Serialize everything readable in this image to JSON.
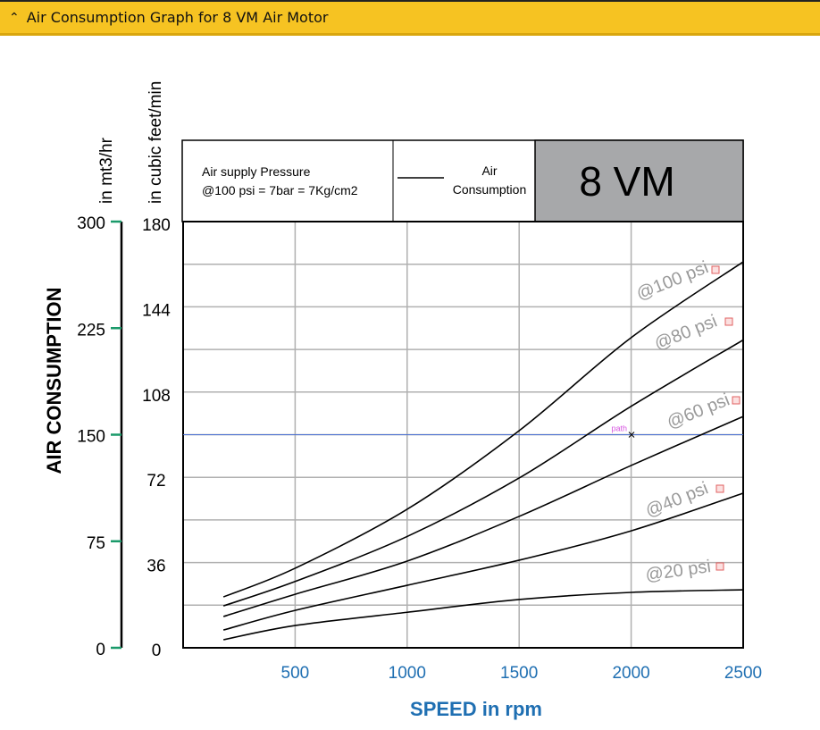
{
  "header": {
    "title": "Air Consumption Graph for 8 VM Air Motor",
    "icon": "chevron-up-icon"
  },
  "chart_data": {
    "type": "line",
    "model": "8 VM",
    "legend": {
      "pressure_line1": "Air supply Pressure",
      "pressure_line2": "@100 psi = 7bar = 7Kg/cm2",
      "line_label1": "Air",
      "line_label2": "Consumption"
    },
    "xlabel": "SPEED in rpm",
    "ylabel": "AIR CONSUMPTION",
    "y_unit_left": "in mt3/hr",
    "y_unit_right": "in cubic feet/min",
    "xlim": [
      0,
      2500
    ],
    "ylim_cfm": [
      0,
      180
    ],
    "ylim_m3hr": [
      0,
      300
    ],
    "x_ticks": [
      "500",
      "1000",
      "1500",
      "2000",
      "2500"
    ],
    "y_ticks_cfm": [
      "0",
      "36",
      "72",
      "108",
      "144",
      "180"
    ],
    "y_ticks_m3hr": [
      "0",
      "75",
      "150",
      "225",
      "300"
    ],
    "grid": true,
    "x": [
      180,
      500,
      1000,
      1500,
      2000,
      2500
    ],
    "series": [
      {
        "name": "@100 psi",
        "values": [
          21.5,
          33.6,
          58.5,
          91.7,
          131,
          163
        ]
      },
      {
        "name": "@80 psi",
        "values": [
          17.7,
          28,
          47,
          71.7,
          102,
          130
        ]
      },
      {
        "name": "@60 psi",
        "values": [
          13.2,
          22.6,
          36.6,
          55.5,
          77,
          97.7
        ]
      },
      {
        "name": "@40 psi",
        "values": [
          7.5,
          15.8,
          26.4,
          37,
          49.4,
          65.3
        ]
      },
      {
        "name": "@20 psi",
        "values": [
          3.4,
          9.4,
          15,
          20.4,
          23.4,
          24.5
        ]
      }
    ],
    "reference_line": {
      "value_m3hr": 150,
      "label": "path",
      "color": "#4a6fd1"
    },
    "colors": {
      "curve": "#000000",
      "grid": "#b0b0b0",
      "axis_tick_blue": "#1f6fb2",
      "tick_green": "#1a9a6a",
      "model_box": "#a7a8aa",
      "series_label": "#9a9a9a"
    }
  }
}
